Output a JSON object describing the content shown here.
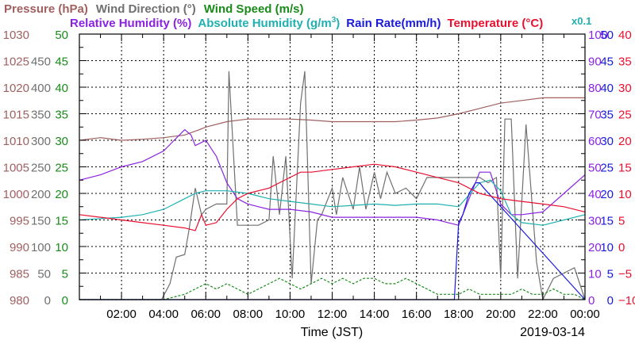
{
  "chart_data": {
    "type": "line",
    "date_label": "2019-03-14",
    "xlabel": "Time (JST)",
    "x_ticks": [
      "02:00",
      "04:00",
      "06:00",
      "08:00",
      "10:00",
      "12:00",
      "14:00",
      "16:00",
      "18:00",
      "20:00",
      "22:00",
      "00:00"
    ],
    "x_range": [
      0,
      24
    ],
    "grid": true,
    "legend_top": [
      {
        "label": "Pressure (hPa)",
        "color": "#a06060"
      },
      {
        "label": "Wind Direction (°)",
        "color": "#707070"
      },
      {
        "label": "Wind Speed (m/s)",
        "color": "#1a8a1a"
      }
    ],
    "legend_second": [
      {
        "label": "Relative Humidity (%)",
        "color": "#8b22e0"
      },
      {
        "label": "Absolute Humidity (g/m",
        "sup": "3",
        "suffix": ")",
        "color": "#20b0b0"
      },
      {
        "label": "Rain Rate(mm/h)",
        "color": "#1a1adc"
      },
      {
        "label": "Temperature (°C)",
        "color": "#e81030"
      }
    ],
    "scale_note": "x0.1",
    "axes": {
      "pressure": {
        "ticks": [
          "1030",
          "1025",
          "1020",
          "1015",
          "1010",
          "1005",
          "1000",
          "995",
          "990",
          "985",
          "980"
        ],
        "range": [
          980,
          1030
        ],
        "color": "#a06060"
      },
      "wind_direction": {
        "ticks": [
          "450",
          "400",
          "350",
          "300",
          "250",
          "200",
          "150",
          "100",
          "50",
          "0"
        ],
        "range": [
          0,
          500
        ],
        "color": "#707070"
      },
      "wind_speed": {
        "ticks": [
          "50",
          "45",
          "40",
          "35",
          "30",
          "25",
          "20",
          "15",
          "10",
          "5",
          "0"
        ],
        "range": [
          0,
          50
        ],
        "color": "#1a8a1a"
      },
      "humidity": {
        "ticks": [
          "100",
          "90",
          "80",
          "70",
          "60",
          "50",
          "40",
          "30",
          "20",
          "10",
          "0"
        ],
        "range": [
          0,
          100
        ],
        "color": "#8b22e0"
      },
      "rain": {
        "ticks": [
          "50",
          "45",
          "40",
          "35",
          "30",
          "25",
          "20",
          "15",
          "10",
          "5",
          "0"
        ],
        "range": [
          0,
          50
        ],
        "color": "#1a1adc"
      },
      "temperature": {
        "ticks": [
          "40",
          "35",
          "30",
          "25",
          "20",
          "15",
          "10",
          "5",
          "0",
          "−5",
          "−10"
        ],
        "range": [
          -10,
          40
        ],
        "color": "#e81030"
      }
    },
    "series": [
      {
        "name": "Pressure (hPa)",
        "axis": "pressure",
        "color": "#a06060",
        "x": [
          0,
          1,
          2,
          3,
          4,
          5,
          5.7,
          6,
          7,
          8,
          9,
          10,
          11,
          12,
          13,
          14,
          15,
          16,
          17,
          18,
          19,
          20,
          21,
          22,
          23,
          24
        ],
        "y": [
          1010,
          1010.5,
          1010,
          1010.2,
          1010.5,
          1011,
          1012,
          1012.5,
          1013.5,
          1014,
          1014,
          1014,
          1013.8,
          1013.5,
          1013.5,
          1013.5,
          1013.5,
          1013.8,
          1014.2,
          1015,
          1016,
          1017,
          1017.5,
          1018,
          1018,
          1018
        ]
      },
      {
        "name": "Wind Direction (°)",
        "axis": "wind_direction",
        "color": "#707070",
        "x": [
          0,
          2.7,
          3.9,
          4.3,
          4.6,
          5.0,
          5.2,
          5.5,
          5.8,
          6.0,
          6.5,
          7.0,
          7.1,
          7.5,
          8.0,
          8.5,
          9.0,
          9.2,
          9.5,
          9.8,
          10.1,
          10.5,
          10.7,
          11.0,
          11.3,
          11.5,
          12.0,
          12.2,
          12.5,
          13.0,
          13.3,
          13.6,
          14.0,
          14.3,
          14.6,
          15.0,
          15.5,
          16.0,
          16.5,
          17.0,
          17.5,
          18.0,
          18.5,
          19.0,
          19.4,
          19.8,
          20.0,
          20.2,
          20.5,
          20.8,
          21.2,
          21.7,
          22.0,
          22.5,
          23.0,
          23.5,
          24.0
        ],
        "y": [
          0,
          0,
          0,
          30,
          80,
          85,
          130,
          210,
          160,
          170,
          180,
          180,
          430,
          140,
          140,
          140,
          150,
          270,
          160,
          270,
          40,
          370,
          430,
          30,
          150,
          160,
          210,
          160,
          230,
          170,
          250,
          170,
          240,
          190,
          240,
          200,
          210,
          190,
          230,
          230,
          230,
          230,
          230,
          230,
          220,
          230,
          40,
          340,
          340,
          40,
          330,
          70,
          0,
          40,
          50,
          60,
          0
        ]
      },
      {
        "name": "Wind Speed (m/s)",
        "axis": "wind_speed",
        "color": "#1a8a1a",
        "x": [
          0,
          1,
          2,
          3,
          4,
          5,
          5.5,
          6,
          6.5,
          7,
          7.5,
          8,
          8.5,
          9,
          9.5,
          10,
          10.5,
          11,
          11.5,
          12,
          12.5,
          13,
          13.5,
          14,
          14.5,
          15,
          15.5,
          16,
          16.5,
          17,
          17.5,
          18,
          18.5,
          19,
          19.5,
          20,
          20.5,
          21,
          21.5,
          22,
          22.5,
          23,
          23.5,
          24
        ],
        "y": [
          0,
          0,
          0,
          0,
          0,
          1,
          2,
          3,
          2,
          3,
          2,
          1,
          2,
          3,
          4,
          3,
          2,
          3,
          4,
          3,
          4,
          3,
          4,
          4,
          3,
          3,
          4,
          3,
          2,
          1,
          1,
          1,
          2,
          1,
          1,
          1,
          1,
          2,
          1,
          1,
          2,
          1,
          1,
          0
        ]
      },
      {
        "name": "Relative Humidity (%)",
        "axis": "humidity",
        "color": "#8b22e0",
        "x": [
          0,
          1,
          2,
          3,
          4,
          4.5,
          5,
          5.3,
          5.5,
          6,
          6.5,
          7,
          7.5,
          8,
          8.5,
          9,
          10,
          11,
          12,
          13,
          14,
          15,
          16,
          17,
          17.5,
          18,
          18.5,
          19,
          19.5,
          20,
          20.5,
          21,
          22,
          23,
          24
        ],
        "y": [
          45,
          47,
          50,
          52,
          56,
          60,
          64,
          62,
          58,
          60,
          54,
          44,
          38,
          36,
          35,
          34,
          34,
          33,
          31,
          31,
          31,
          31,
          31,
          30,
          29,
          28,
          38,
          48,
          48,
          36,
          32,
          32,
          33,
          40,
          47
        ]
      },
      {
        "name": "Absolute Humidity (g/m3)",
        "axis": "humidity",
        "color": "#20b0b0",
        "x": [
          0,
          1,
          2,
          3,
          4,
          5,
          5.5,
          6,
          7,
          8,
          9,
          10,
          11,
          12,
          13,
          14,
          15,
          16,
          17,
          18,
          19,
          19.5,
          20,
          20.5,
          21,
          22,
          23,
          24
        ],
        "y": [
          30,
          30.5,
          31,
          32,
          34,
          38,
          40,
          41,
          41,
          40,
          38,
          37,
          36,
          35,
          35.5,
          36,
          35.5,
          36,
          36,
          35,
          44,
          45,
          41,
          32,
          29,
          28,
          30,
          32
        ]
      },
      {
        "name": "Rain Rate(mm/h)",
        "axis": "rain",
        "color": "#1a1adc",
        "x": [
          0,
          17.8,
          18,
          18.2,
          18.5,
          18.8,
          19,
          19.2,
          24
        ],
        "y": [
          0,
          0,
          14.5,
          16,
          20,
          22,
          22,
          21,
          0
        ]
      },
      {
        "name": "Temperature (°C)",
        "axis": "temperature",
        "color": "#e81030",
        "x": [
          0,
          1,
          2,
          3,
          4,
          5,
          5.5,
          5.8,
          6,
          6.5,
          7,
          7.5,
          8,
          9,
          10,
          10.5,
          11,
          12,
          13,
          14,
          15,
          16,
          17,
          18,
          19,
          20,
          21,
          22,
          23,
          24
        ],
        "y": [
          6,
          5.5,
          5,
          4.5,
          4,
          3.5,
          3,
          6,
          4,
          4.5,
          7,
          9,
          10,
          11,
          13,
          14,
          14,
          14.5,
          15,
          15.5,
          15,
          14,
          13,
          12,
          10,
          9,
          8.5,
          8,
          7.5,
          6.5
        ]
      }
    ]
  }
}
